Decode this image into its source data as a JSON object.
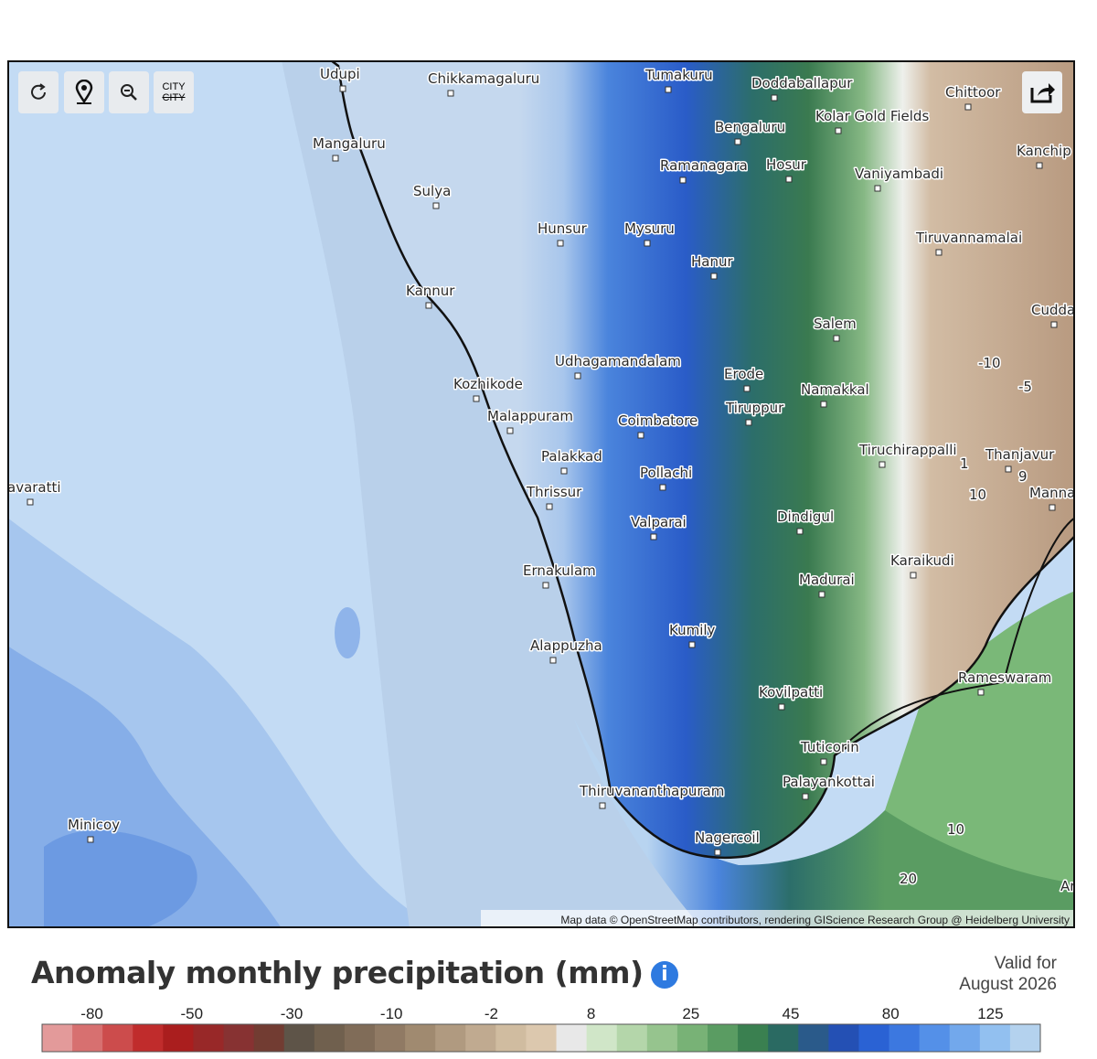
{
  "map": {
    "toolbar": {
      "city_toggle": [
        "CITY",
        "CITY"
      ]
    },
    "cities": [
      "Udupi",
      "Chikkamagaluru",
      "Tumakuru",
      "Doddaballapur",
      "Chittoor",
      "Bengaluru",
      "Kolar Gold Fields",
      "Kanchip",
      "Mangaluru",
      "Ramanagara",
      "Hosur",
      "Vaniyambadi",
      "Sulya",
      "Hunsur",
      "Mysuru",
      "Tiruvannamalai",
      "Hanur",
      "Kannur",
      "Cudda",
      "Salem",
      "Udhagamandalam",
      "Erode",
      "Kozhikode",
      "Namakkal",
      "Tiruppur",
      "Malappuram",
      "Coimbatore",
      "Tiruchirappalli",
      "Thanjavur",
      "Palakkad",
      "Pollachi",
      "avaratti",
      "Thrissur",
      "Manna",
      "Valparai",
      "Dindigul",
      "Karaikudi",
      "Ernakulam",
      "Madurai",
      "Kumily",
      "Alappuzha",
      "Rameswaram",
      "Kovilpatti",
      "Tuticorin",
      "Palayankottai",
      "Thiruvananthapuram",
      "Minicoy",
      "Nagercoil",
      "Ar"
    ],
    "contour_labels": [
      "-10",
      "-5",
      "1",
      "9",
      "10",
      "10",
      "20"
    ],
    "attribution": "Map data © OpenStreetMap contributors, rendering GIScience Research Group @ Heidelberg University"
  },
  "legend": {
    "title": "Anomaly monthly precipitation (mm)",
    "valid_label": "Valid for",
    "valid_date": "August 2026",
    "ticks": [
      -80,
      -50,
      -30,
      -10,
      -2,
      8,
      25,
      45,
      80,
      125
    ],
    "colors": [
      "#e39a9a",
      "#d77070",
      "#cc4c4c",
      "#c02c2c",
      "#aa1e1e",
      "#982828",
      "#873232",
      "#723c32",
      "#5e5448",
      "#70604e",
      "#806c58",
      "#907a64",
      "#a08a70",
      "#b09a80",
      "#c0aa90",
      "#d0bca0",
      "#dcc8ae",
      "#e8e8e8",
      "#d0e6c8",
      "#b4d6aa",
      "#96c48e",
      "#78b276",
      "#5a9c62",
      "#3a8050",
      "#2a6a62",
      "#2a5a8a",
      "#2450b4",
      "#2a62d4",
      "#3c78e0",
      "#5490e8",
      "#72a8ec",
      "#92c0f0",
      "#b4d2ee"
    ]
  }
}
